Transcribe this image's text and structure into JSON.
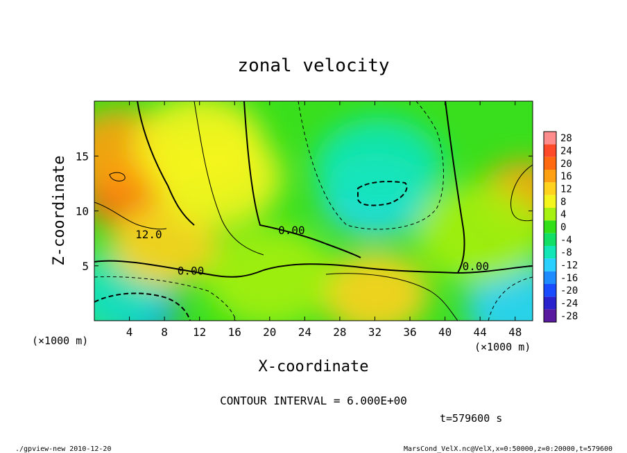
{
  "chart_data": {
    "type": "heatmap",
    "title": "zonal velocity",
    "xlabel": "X-coordinate",
    "ylabel": "Z-coordinate",
    "x_unit_note_left": "(×1000 m)",
    "x_unit_note_right": "(×1000 m)",
    "xlim": [
      0,
      50
    ],
    "ylim": [
      0,
      20
    ],
    "x_ticks": [
      4,
      8,
      12,
      16,
      20,
      24,
      28,
      32,
      36,
      40,
      44,
      48
    ],
    "y_ticks": [
      5,
      10,
      15
    ],
    "colorbar": {
      "levels": [
        28,
        24,
        20,
        16,
        12,
        8,
        4,
        0,
        -4,
        -8,
        -12,
        -16,
        -20,
        -24,
        -28
      ],
      "colors": [
        "#ff8c8c",
        "#ff4a2a",
        "#ff6a10",
        "#ffa012",
        "#ffd21e",
        "#f4f51c",
        "#a6f012",
        "#33df18",
        "#12e066",
        "#12e6b6",
        "#2ad0ff",
        "#1e8cff",
        "#1a4cff",
        "#2a22cc",
        "#5a1aa0"
      ]
    },
    "contour_labels": [
      {
        "text": "12.0",
        "x": 6.2,
        "y": 7.5
      },
      {
        "text": "0.00",
        "x": 11.0,
        "y": 4.2
      },
      {
        "text": "0.00",
        "x": 22.5,
        "y": 7.9
      },
      {
        "text": "0.00",
        "x": 43.5,
        "y": 4.6
      }
    ],
    "anomalies": [
      {
        "x": 3.5,
        "z": 11.5,
        "value": 20
      },
      {
        "x": 3.0,
        "z": 15.5,
        "value": 14
      },
      {
        "x": 49.0,
        "z": 11.5,
        "value": 16
      },
      {
        "x": 4.5,
        "z": 1.2,
        "value": -18
      },
      {
        "x": 2.0,
        "z": 2.5,
        "value": -10
      },
      {
        "x": 48.5,
        "z": 1.2,
        "value": -12
      },
      {
        "x": 32.0,
        "z": 11.5,
        "value": -12
      },
      {
        "x": 32.5,
        "z": 14.0,
        "value": -8
      },
      {
        "x": 32.0,
        "z": 2.5,
        "value": 10
      },
      {
        "x": 8.0,
        "z": 7.0,
        "value": 12
      },
      {
        "x": 12.0,
        "z": 16.0,
        "value": 8
      },
      {
        "x": 14.0,
        "z": 13.0,
        "value": 6
      },
      {
        "x": 44.0,
        "z": 8.0,
        "value": 4
      },
      {
        "x": 20.0,
        "z": 4.0,
        "value": 2
      }
    ]
  },
  "annotations": {
    "contour_interval": "CONTOUR INTERVAL = 6.000E+00",
    "time": "t=579600 s",
    "footer_left": "./gpview-new  2010-12-20",
    "footer_right": "MarsCond_VelX.nc@VelX,x=0:50000,z=0:20000,t=579600"
  }
}
